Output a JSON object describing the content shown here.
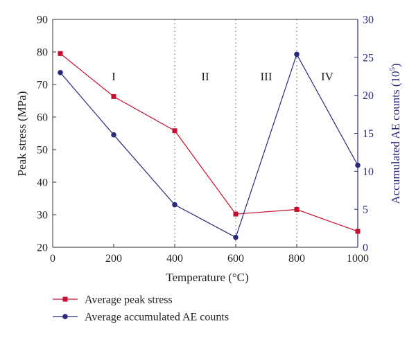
{
  "chart_data": {
    "type": "line",
    "xlabel": "Temperature (°C)",
    "ylabel_left": "Peak stress (MPa)",
    "ylabel_right_main": "Accumulated AE counts (10",
    "ylabel_right_sup": "5",
    "ylabel_right_tail": ")",
    "xlim": [
      0,
      1000
    ],
    "ylim_left": [
      20,
      90
    ],
    "ylim_right": [
      0,
      30
    ],
    "x_ticks": [
      0,
      200,
      400,
      600,
      800,
      1000
    ],
    "y_left_ticks": [
      20,
      30,
      40,
      50,
      60,
      70,
      80,
      90
    ],
    "y_right_ticks": [
      0,
      5,
      10,
      15,
      20,
      25,
      30
    ],
    "grid": false,
    "legend_position": "bottom-left",
    "region_dividers": [
      400,
      600,
      800
    ],
    "regions": [
      {
        "label": "I",
        "x": 200
      },
      {
        "label": "II",
        "x": 500
      },
      {
        "label": "III",
        "x": 700
      },
      {
        "label": "IV",
        "x": 900
      }
    ],
    "series": [
      {
        "name": "Average peak stress",
        "axis": "left",
        "marker": "square",
        "color": "#c8102e",
        "x": [
          25,
          200,
          400,
          600,
          800,
          1000
        ],
        "values": [
          79.5,
          66.3,
          55.8,
          30.2,
          31.6,
          24.9
        ]
      },
      {
        "name": "Average accumulated AE counts",
        "axis": "right",
        "marker": "circle",
        "color": "#2a2a7a",
        "x": [
          25,
          200,
          400,
          600,
          800,
          1000
        ],
        "values": [
          23.0,
          14.8,
          5.6,
          1.3,
          25.4,
          10.8
        ]
      }
    ]
  }
}
